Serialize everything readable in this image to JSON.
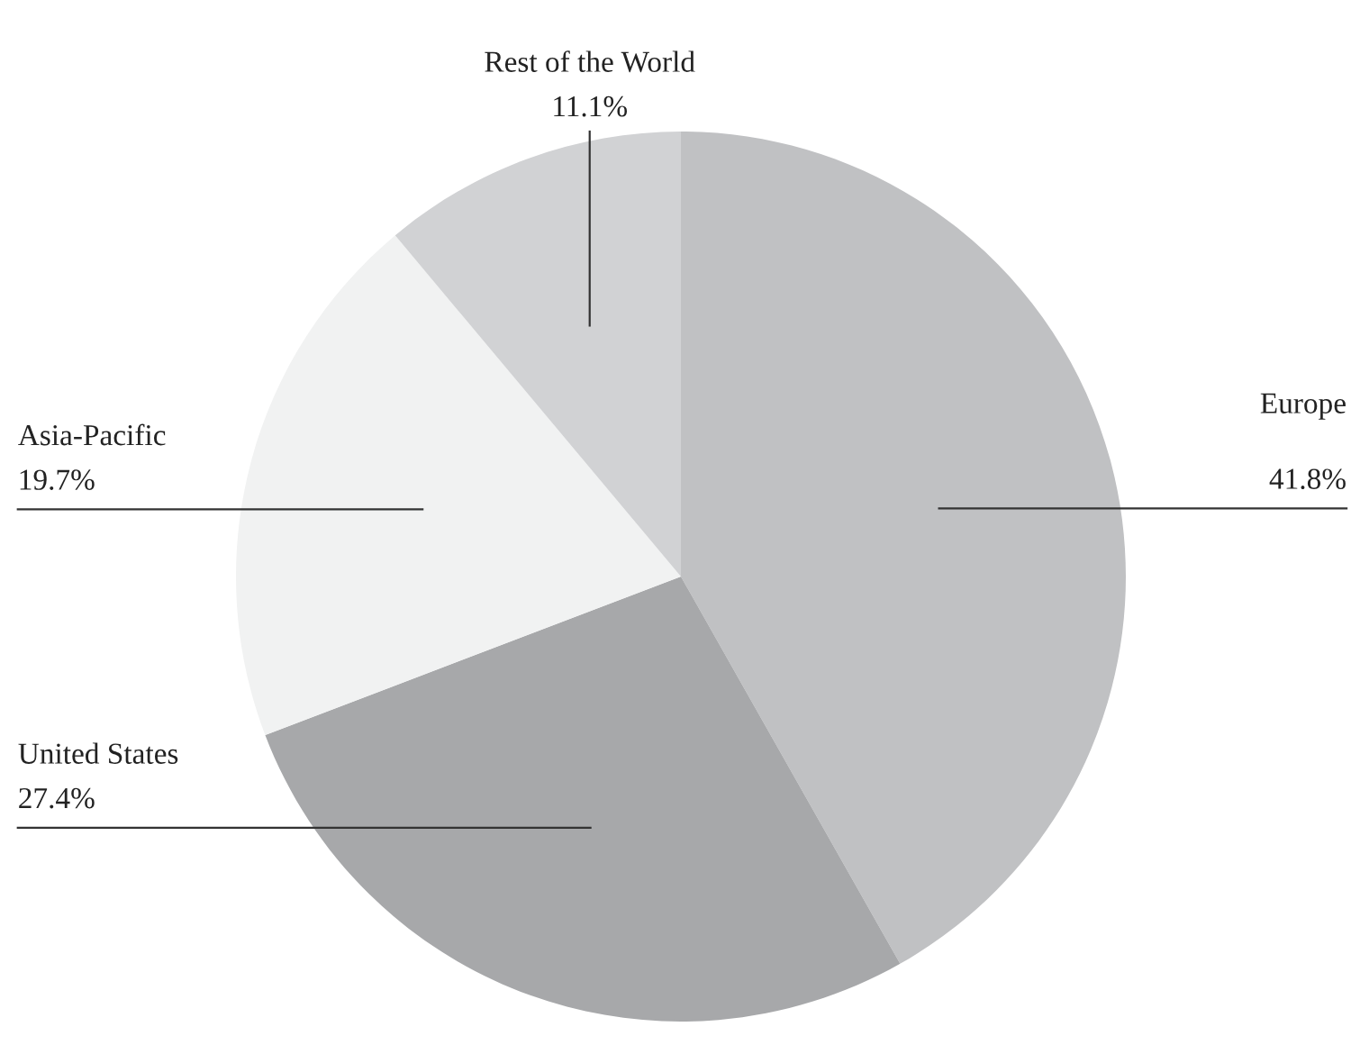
{
  "chart_data": {
    "type": "pie",
    "categories": [
      "Europe",
      "United States",
      "Asia-Pacific",
      "Rest of the World"
    ],
    "values": [
      41.8,
      27.4,
      19.7,
      11.1
    ],
    "colors": [
      "#c0c1c3",
      "#a7a8aa",
      "#f1f2f2",
      "#d1d2d4"
    ],
    "value_labels": [
      "41.8%",
      "27.4%",
      "19.7%",
      "11.1%"
    ]
  }
}
